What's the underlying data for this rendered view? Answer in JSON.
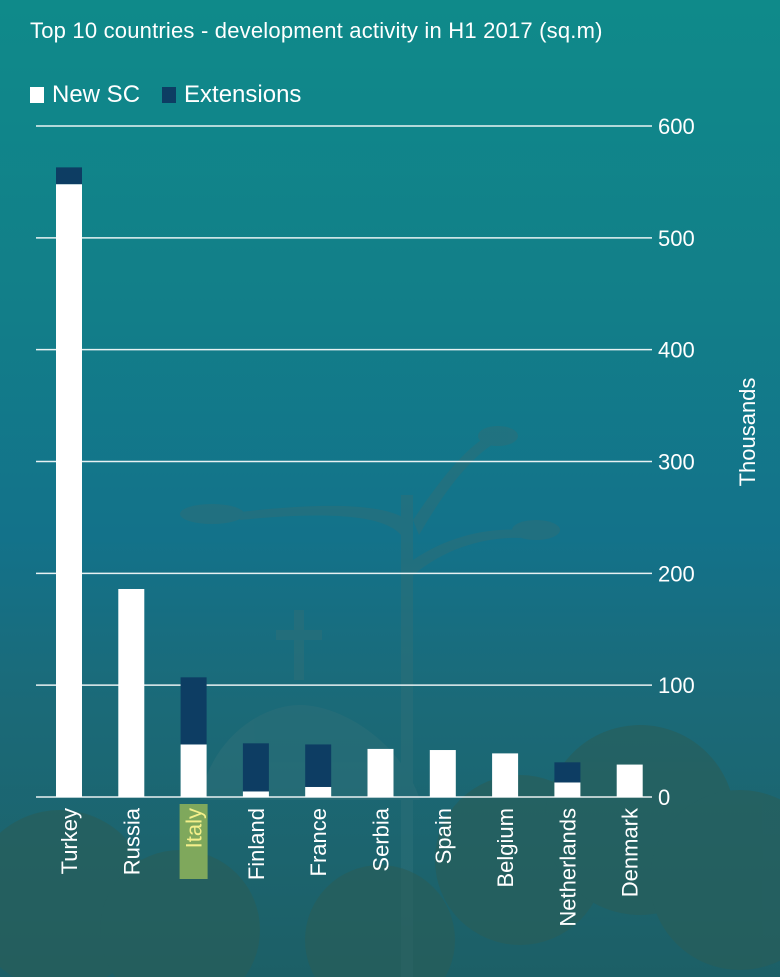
{
  "chart_data": {
    "type": "bar",
    "stacked": true,
    "title": "Top 10 countries - development activity in H1 2017 (sq.m)",
    "ylabel": "Thousands",
    "ylim": [
      0,
      600
    ],
    "yticks": [
      0,
      100,
      200,
      300,
      400,
      500,
      600
    ],
    "categories": [
      "Turkey",
      "Russia",
      "Italy",
      "Finland",
      "France",
      "Serbia",
      "Spain",
      "Belgium",
      "Netherlands",
      "Denmark"
    ],
    "highlighted_category": "Italy",
    "series": [
      {
        "name": "New SC",
        "color": "#ffffff",
        "values": [
          548,
          186,
          47,
          5,
          9,
          43,
          42,
          39,
          13,
          29
        ]
      },
      {
        "name": "Extensions",
        "color": "#0d3d63",
        "values": [
          15,
          0,
          60,
          43,
          38,
          0,
          0,
          0,
          18,
          0
        ]
      }
    ],
    "grid": true,
    "legend_position": "top-left",
    "highlight_color": "#7fa85c",
    "highlight_text_color": "#f4ef8a"
  }
}
